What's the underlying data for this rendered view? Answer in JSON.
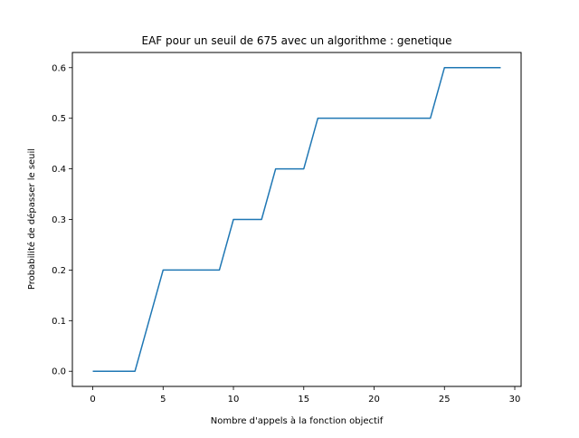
{
  "chart_data": {
    "type": "line",
    "title": "EAF pour un seuil de 675 avec un algorithme : genetique",
    "xlabel": "Nombre d'appels à la fonction objectif",
    "ylabel": "Probabilité de dépasser le seuil",
    "xlim": [
      -1.45,
      30.45
    ],
    "ylim": [
      -0.03,
      0.63
    ],
    "xticks": [
      0,
      5,
      10,
      15,
      20,
      25,
      30
    ],
    "xtick_labels": [
      "0",
      "5",
      "10",
      "15",
      "20",
      "25",
      "30"
    ],
    "yticks": [
      0.0,
      0.1,
      0.2,
      0.3,
      0.4,
      0.5,
      0.6
    ],
    "ytick_labels": [
      "0.0",
      "0.1",
      "0.2",
      "0.3",
      "0.4",
      "0.5",
      "0.6"
    ],
    "grid": false,
    "line_color": "#1f77b4",
    "x": [
      0,
      1,
      2,
      3,
      4,
      5,
      6,
      7,
      8,
      9,
      10,
      11,
      12,
      13,
      14,
      15,
      16,
      17,
      18,
      19,
      20,
      21,
      22,
      23,
      24,
      25,
      26,
      27,
      28,
      29
    ],
    "y": [
      0.0,
      0.0,
      0.0,
      0.0,
      0.1,
      0.2,
      0.2,
      0.2,
      0.2,
      0.2,
      0.3,
      0.3,
      0.3,
      0.4,
      0.4,
      0.4,
      0.5,
      0.5,
      0.5,
      0.5,
      0.5,
      0.5,
      0.5,
      0.5,
      0.5,
      0.6,
      0.6,
      0.6,
      0.6,
      0.6
    ]
  }
}
